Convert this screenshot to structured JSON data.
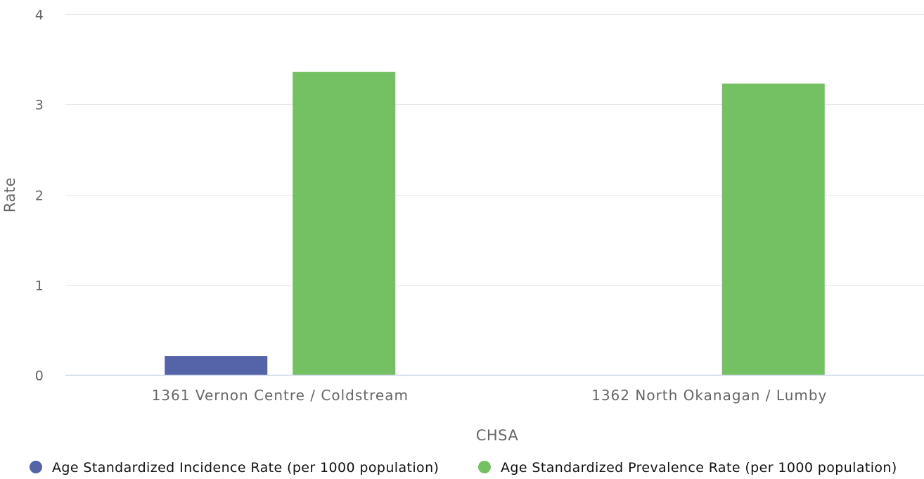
{
  "chart_data": {
    "type": "bar",
    "categories": [
      "1361 Vernon Centre / Coldstream",
      "1362 North Okanagan / Lumby"
    ],
    "series": [
      {
        "name": "Age Standardized Incidence Rate (per 1000 population)",
        "color": "#5563a9",
        "values": [
          0.21,
          null
        ]
      },
      {
        "name": "Age Standardized Prevalence Rate (per 1000 population)",
        "color": "#74c163",
        "values": [
          3.36,
          3.23
        ]
      }
    ],
    "xlabel": "CHSA",
    "ylabel": "Rate",
    "ylim": [
      0,
      4
    ],
    "yticks": [
      0,
      1,
      2,
      3,
      4
    ],
    "grid": true,
    "legend": "bottom"
  }
}
